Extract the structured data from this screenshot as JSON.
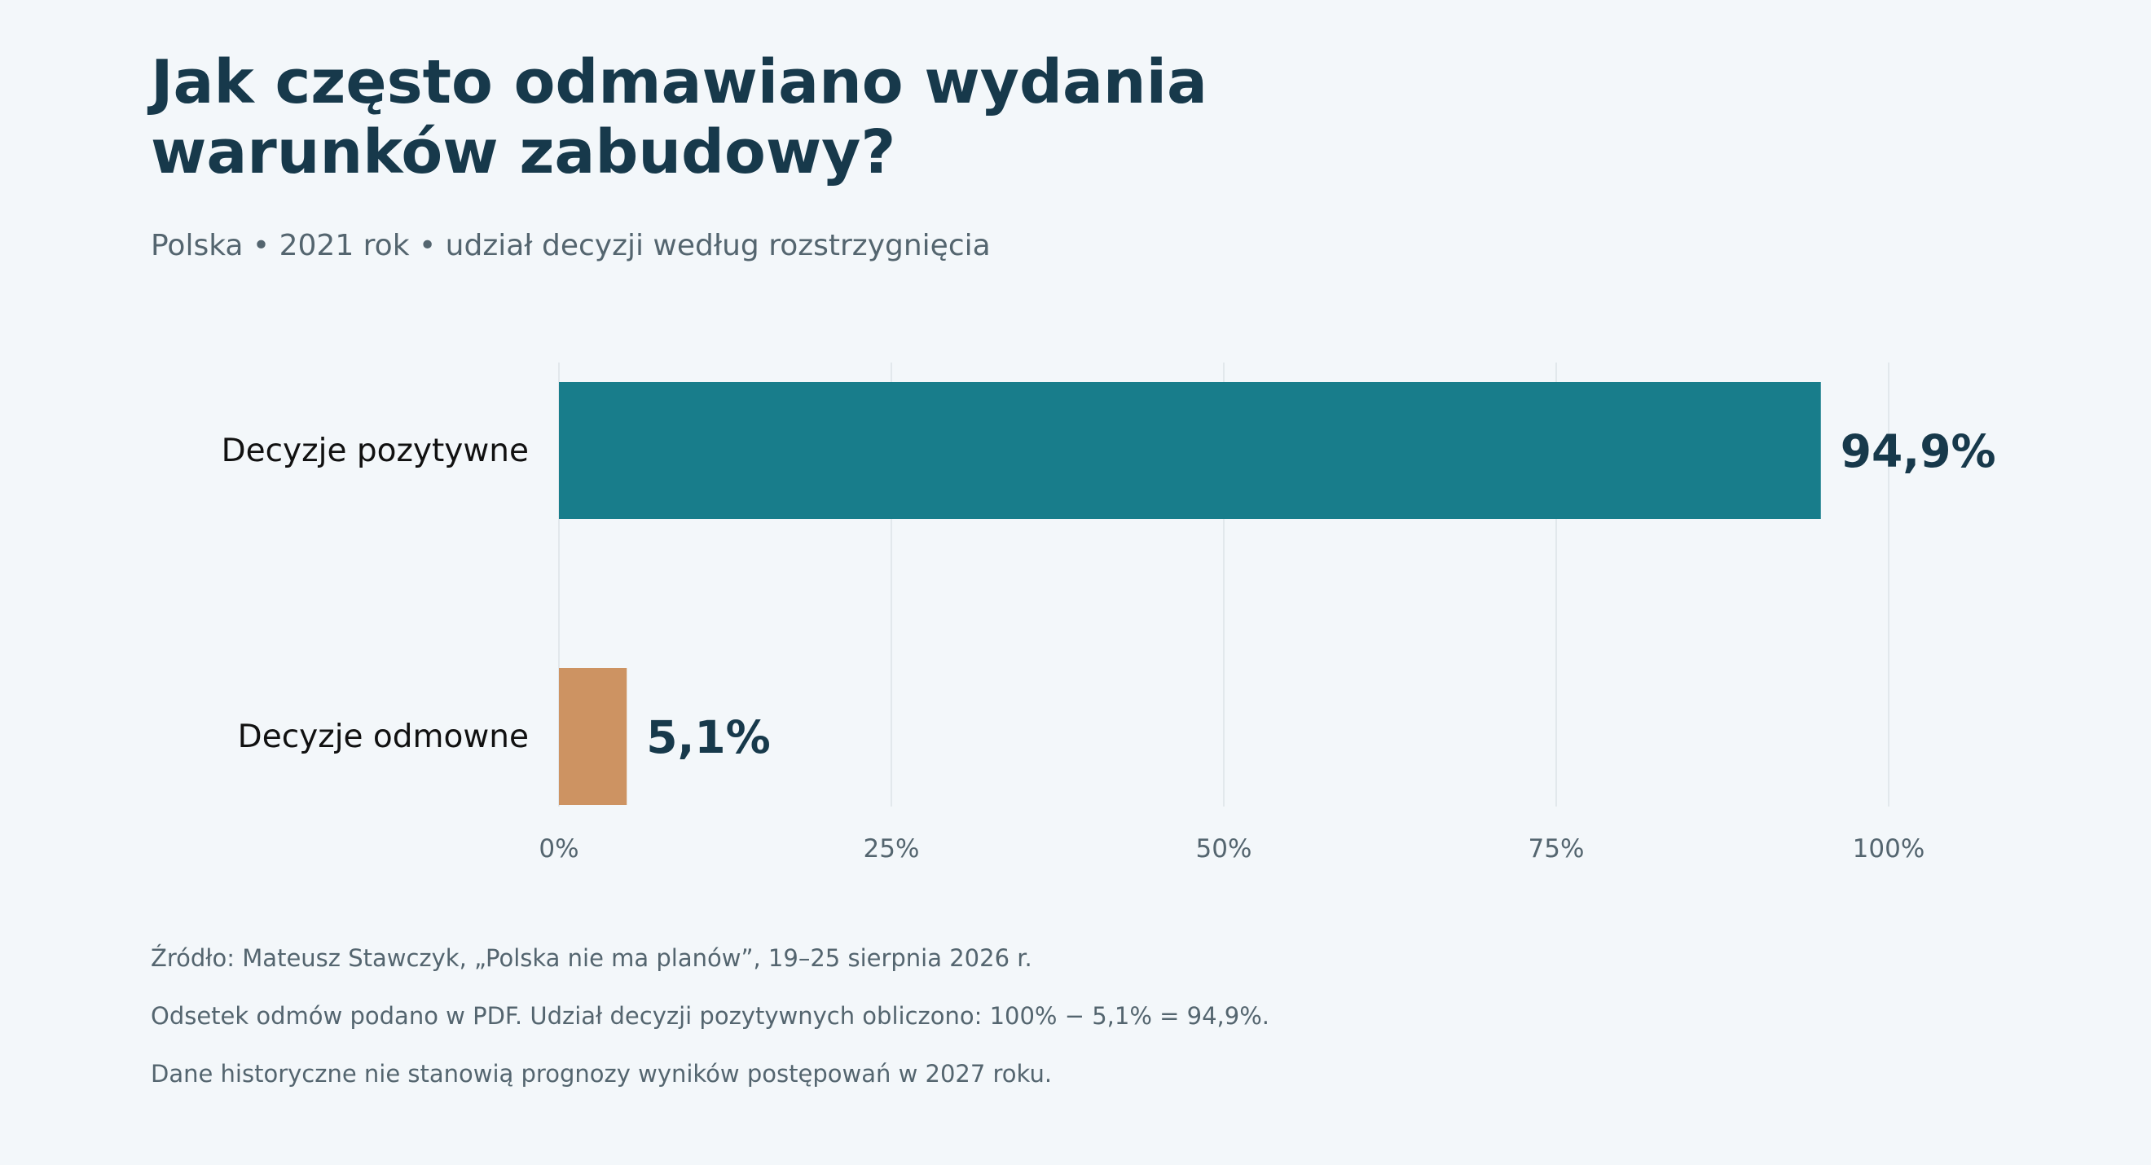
{
  "title": "Jak często odmawiano wydania warunków zabudowy?",
  "subtitle": "Polska • 2021 rok • udział decyzji według rozstrzygnięcia",
  "chart_data": {
    "type": "bar",
    "orientation": "horizontal",
    "categories": [
      "Decyzje pozytywne",
      "Decyzje odmowne"
    ],
    "values": [
      94.9,
      5.1
    ],
    "value_labels": [
      "94,9%",
      "5,1%"
    ],
    "colors": [
      "#187d8b",
      "#cd9362"
    ],
    "xlim": [
      0,
      100
    ],
    "xticks": [
      0,
      25,
      50,
      75,
      100
    ],
    "xtick_labels": [
      "0%",
      "25%",
      "50%",
      "75%",
      "100%"
    ],
    "grid": "vertical"
  },
  "footnotes": [
    "Źródło: Mateusz Stawczyk, „Polska nie ma planów”, 19–25 sierpnia 2026 r.",
    "Odsetek odmów podano w PDF. Udział decyzji pozytywnych obliczono: 100% − 5,1% = 94,9%.",
    "Dane historyczne nie stanowią prognozy wyników postępowań w 2027 roku."
  ],
  "colors": {
    "background": "#f3f7fa",
    "title": "#17394b",
    "muted": "#54656f",
    "grid": "#e2e8ec"
  }
}
